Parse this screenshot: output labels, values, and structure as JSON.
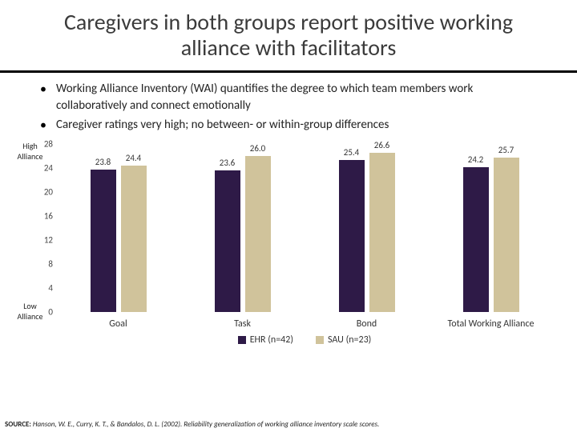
{
  "title": "Caregivers in both groups report positive working alliance with facilitators",
  "bullets": [
    "Working Alliance Inventory (WAI) quantifies the degree to which team members work collaboratively and connect emotionally",
    "Caregiver ratings very high; no between- or within-group differences"
  ],
  "chart": {
    "type": "bar",
    "y_label_high": "High Alliance",
    "y_label_low": "Low Alliance",
    "ylim": [
      0,
      28
    ],
    "ytick_step": 4,
    "categories": [
      "Goal",
      "Task",
      "Bond",
      "Total Working Alliance"
    ],
    "series": [
      {
        "name": "EHR (n=42)",
        "color": "#2e1a47",
        "values": [
          23.8,
          23.6,
          25.4,
          24.2
        ]
      },
      {
        "name": "SAU (n=23)",
        "color": "#d0c39b",
        "values": [
          24.4,
          26.0,
          26.6,
          25.7
        ]
      }
    ],
    "label_fontsize": 11,
    "background_color": "#ffffff"
  },
  "source": {
    "label": "SOURCE:",
    "text": "Hanson, W. E., Curry, K. T., & Bandalos, D. L. (2002). Reliability generalization of working alliance inventory scale scores."
  }
}
